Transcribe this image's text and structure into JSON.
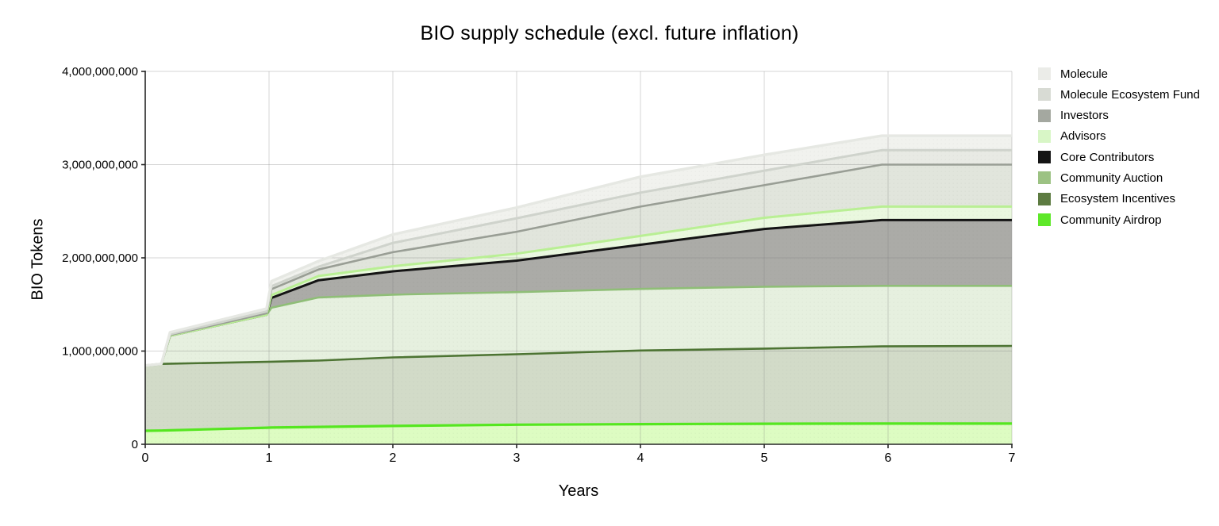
{
  "title": "BIO supply schedule (excl. future inflation)",
  "chart_data": {
    "type": "area",
    "stacked": true,
    "title": "BIO supply schedule (excl. future inflation)",
    "xlabel": "Years",
    "ylabel": "BIO Tokens",
    "xlim": [
      0,
      7
    ],
    "ylim": [
      0,
      4000000000
    ],
    "grid": true,
    "legend_position": "right-outside",
    "x_ticks": {
      "values": [
        0,
        1,
        2,
        3,
        4,
        5,
        6,
        7
      ],
      "labels": [
        "0",
        "1",
        "2",
        "3",
        "4",
        "5",
        "6",
        "7"
      ]
    },
    "y_ticks": {
      "values": [
        0,
        1000000000,
        2000000000,
        3000000000,
        4000000000
      ],
      "labels": [
        "0",
        "1,000,000,000",
        "2,000,000,000",
        "3,000,000,000",
        "4,000,000,000"
      ]
    },
    "x": [
      0,
      0.13,
      0.2,
      0.98,
      1.02,
      1.4,
      2,
      3,
      4,
      5,
      5.95,
      7
    ],
    "series_note": "series listed in legend order (top of stack first); stacking is bottom-up in reverse order; values are millions of BIO tokens unlocked per tranche",
    "series": [
      {
        "name": "Molecule",
        "slug": "molecule",
        "swatch_color": "#ebece8",
        "fill_color": "#f1f2ee",
        "line_color": "#e6e8e3",
        "values_millions": [
          0,
          0,
          20,
          30,
          55,
          60,
          90,
          115,
          170,
          170,
          155,
          155
        ]
      },
      {
        "name": "Molecule Ecosystem Fund",
        "slug": "molecule-ecosystem-fund",
        "swatch_color": "#d8dbd4",
        "fill_color": "#e8eae4",
        "line_color": "#cfd3cc",
        "values_millions": [
          0,
          0,
          8,
          20,
          30,
          30,
          100,
          145,
          150,
          155,
          155,
          155
        ]
      },
      {
        "name": "Investors",
        "slug": "investors",
        "swatch_color": "#a4a8a0",
        "fill_color": "#e1e5dc",
        "line_color": "#999e95",
        "values_millions": [
          0,
          0,
          8,
          15,
          65,
          70,
          150,
          235,
          315,
          350,
          450,
          450
        ]
      },
      {
        "name": "Advisors",
        "slug": "advisors",
        "swatch_color": "#d8f6c6",
        "fill_color": "#eaf8df",
        "line_color": "#b9ef94",
        "values_millions": [
          0,
          0,
          0,
          0,
          30,
          45,
          55,
          75,
          95,
          120,
          145,
          145
        ]
      },
      {
        "name": "Core Contributors",
        "slug": "core-contributors",
        "swatch_color": "#141414",
        "fill_color": "#abaBa7",
        "line_color": "#141414",
        "values_millions": [
          0,
          0,
          0,
          0,
          105,
          185,
          250,
          338,
          474,
          620,
          705,
          705
        ]
      },
      {
        "name": "Community Auction",
        "slug": "community-auction",
        "swatch_color": "#9cc283",
        "fill_color": "#e6f0df",
        "line_color": "#8fbe77",
        "values_millions": [
          0,
          0,
          300,
          506,
          579,
          677,
          673,
          666,
          660,
          664,
          650,
          645
        ]
      },
      {
        "name": "Ecosystem Incentives",
        "slug": "ecosystem-incentives",
        "swatch_color": "#5d7b41",
        "fill_color": "#d2dbc8",
        "line_color": "#4d7433",
        "values_millions": [
          700,
          715,
          715,
          706,
          706,
          712,
          735,
          756,
          790,
          806,
          828,
          833
        ]
      },
      {
        "name": "Community Airdrop",
        "slug": "community-airdrop",
        "swatch_color": "#5ee829",
        "fill_color": "#ddfcc2",
        "line_color": "#55e620",
        "values_millions": [
          145,
          147,
          150,
          178,
          180,
          186,
          197,
          210,
          216,
          220,
          222,
          222
        ]
      }
    ]
  }
}
